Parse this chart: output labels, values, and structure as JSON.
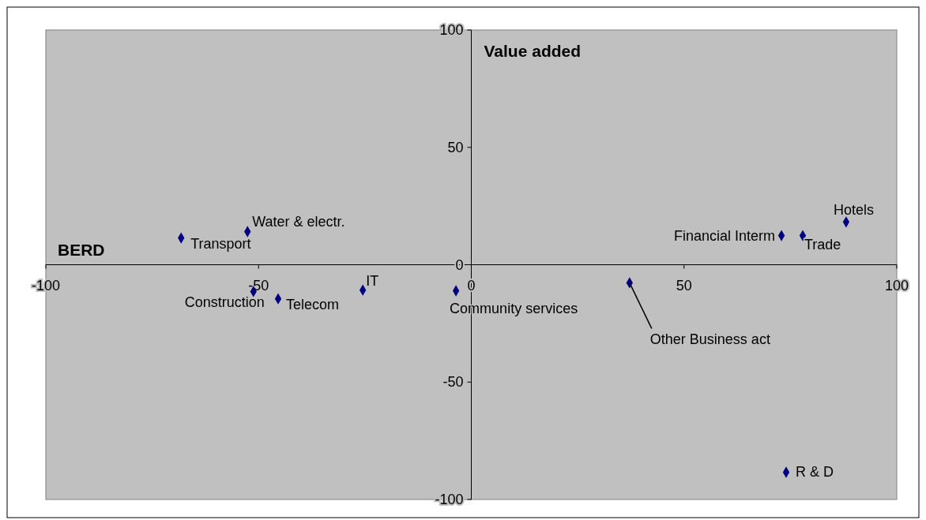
{
  "chart_data": {
    "type": "scatter",
    "xlabel": "BERD",
    "ylabel": "Value added",
    "xlim": [
      -100,
      100
    ],
    "ylim": [
      -100,
      100
    ],
    "xticks": [
      -100,
      -50,
      0,
      50,
      100
    ],
    "yticks": [
      -100,
      -50,
      0,
      50,
      100
    ],
    "grid": false,
    "marker": "diamond",
    "series": [
      {
        "color": "#000080",
        "x": [
          -68.2,
          -52.6,
          -51.2,
          -45.4,
          -25.5,
          -3.6,
          37.2,
          72.9,
          77.9,
          88.1,
          74.0
        ],
        "values": [
          11.4,
          14.1,
          -11.4,
          -14.5,
          -10.8,
          -11.1,
          -7.7,
          12.4,
          12.4,
          18.2,
          -88.4
        ]
      }
    ],
    "annotations": [
      {
        "text": "Transport",
        "x": -68.2,
        "y": 11.4
      },
      {
        "text": "Water & electr.",
        "x": -52.6,
        "y": 14.1
      },
      {
        "text": "Construction",
        "x": -51.2,
        "y": -11.4
      },
      {
        "text": "Telecom",
        "x": -45.4,
        "y": -14.5
      },
      {
        "text": "IT",
        "x": -25.5,
        "y": -10.8
      },
      {
        "text": "Community services",
        "x": -3.6,
        "y": -11.1
      },
      {
        "text": "Other Business act",
        "x": 37.2,
        "y": -7.7
      },
      {
        "text": "Financial Interm",
        "x": 72.9,
        "y": 12.4
      },
      {
        "text": "Trade",
        "x": 77.9,
        "y": 12.4
      },
      {
        "text": "Hotels",
        "x": 88.1,
        "y": 18.2
      },
      {
        "text": "R & D",
        "x": 74.0,
        "y": -88.4
      }
    ]
  }
}
